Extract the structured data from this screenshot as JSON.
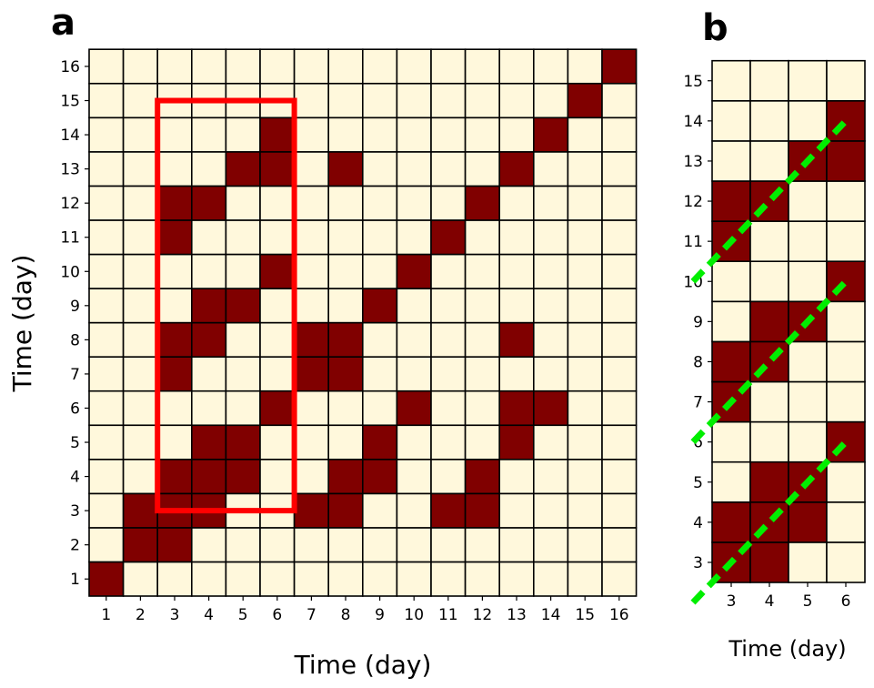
{
  "colors": {
    "off": "#fff8dc",
    "on": "#800000",
    "grid": "#000000",
    "highlight_box": "#ff0000",
    "diagonal": "#00ee00"
  },
  "chart_data": [
    {
      "panel": "a",
      "type": "heatmap",
      "xlabel": "Time (day)",
      "ylabel": "Time (day)",
      "x_ticks": [
        "1",
        "2",
        "3",
        "4",
        "5",
        "6",
        "7",
        "8",
        "9",
        "10",
        "11",
        "12",
        "13",
        "14",
        "15",
        "16"
      ],
      "y_ticks": [
        "1",
        "2",
        "3",
        "4",
        "5",
        "6",
        "7",
        "8",
        "9",
        "10",
        "11",
        "12",
        "13",
        "14",
        "15",
        "16"
      ],
      "cells_on": [
        [
          1,
          1
        ],
        [
          2,
          2
        ],
        [
          3,
          2
        ],
        [
          2,
          3
        ],
        [
          3,
          3
        ],
        [
          4,
          3
        ],
        [
          7,
          3
        ],
        [
          8,
          3
        ],
        [
          11,
          3
        ],
        [
          12,
          3
        ],
        [
          3,
          4
        ],
        [
          4,
          4
        ],
        [
          5,
          4
        ],
        [
          8,
          4
        ],
        [
          9,
          4
        ],
        [
          12,
          4
        ],
        [
          4,
          5
        ],
        [
          5,
          5
        ],
        [
          9,
          5
        ],
        [
          13,
          5
        ],
        [
          6,
          6
        ],
        [
          10,
          6
        ],
        [
          13,
          6
        ],
        [
          14,
          6
        ],
        [
          3,
          7
        ],
        [
          7,
          7
        ],
        [
          8,
          7
        ],
        [
          3,
          8
        ],
        [
          4,
          8
        ],
        [
          7,
          8
        ],
        [
          8,
          8
        ],
        [
          13,
          8
        ],
        [
          4,
          9
        ],
        [
          5,
          9
        ],
        [
          9,
          9
        ],
        [
          6,
          10
        ],
        [
          10,
          10
        ],
        [
          3,
          11
        ],
        [
          11,
          11
        ],
        [
          3,
          12
        ],
        [
          4,
          12
        ],
        [
          12,
          12
        ],
        [
          5,
          13
        ],
        [
          6,
          13
        ],
        [
          8,
          13
        ],
        [
          13,
          13
        ],
        [
          6,
          14
        ],
        [
          14,
          14
        ],
        [
          15,
          15
        ],
        [
          16,
          16
        ]
      ],
      "highlight_box": {
        "x_range": [
          3,
          6
        ],
        "y_range": [
          3,
          15
        ]
      }
    },
    {
      "panel": "b",
      "type": "heatmap",
      "xlabel": "Time (day)",
      "x_ticks": [
        "3",
        "4",
        "5",
        "6"
      ],
      "y_ticks": [
        "3",
        "4",
        "5",
        "6",
        "7",
        "8",
        "9",
        "10",
        "11",
        "12",
        "13",
        "14",
        "15"
      ],
      "cells_on": [
        [
          3,
          3
        ],
        [
          4,
          3
        ],
        [
          3,
          4
        ],
        [
          4,
          4
        ],
        [
          5,
          4
        ],
        [
          4,
          5
        ],
        [
          5,
          5
        ],
        [
          6,
          6
        ],
        [
          3,
          7
        ],
        [
          3,
          8
        ],
        [
          4,
          8
        ],
        [
          4,
          9
        ],
        [
          5,
          9
        ],
        [
          6,
          10
        ],
        [
          3,
          11
        ],
        [
          3,
          12
        ],
        [
          4,
          12
        ],
        [
          5,
          13
        ],
        [
          6,
          13
        ],
        [
          6,
          14
        ]
      ],
      "diagonals": [
        {
          "from": [
            3,
            3
          ],
          "to": [
            6,
            6
          ]
        },
        {
          "from": [
            3,
            7
          ],
          "to": [
            6,
            10
          ]
        },
        {
          "from": [
            3,
            11
          ],
          "to": [
            6,
            14
          ]
        }
      ]
    }
  ]
}
